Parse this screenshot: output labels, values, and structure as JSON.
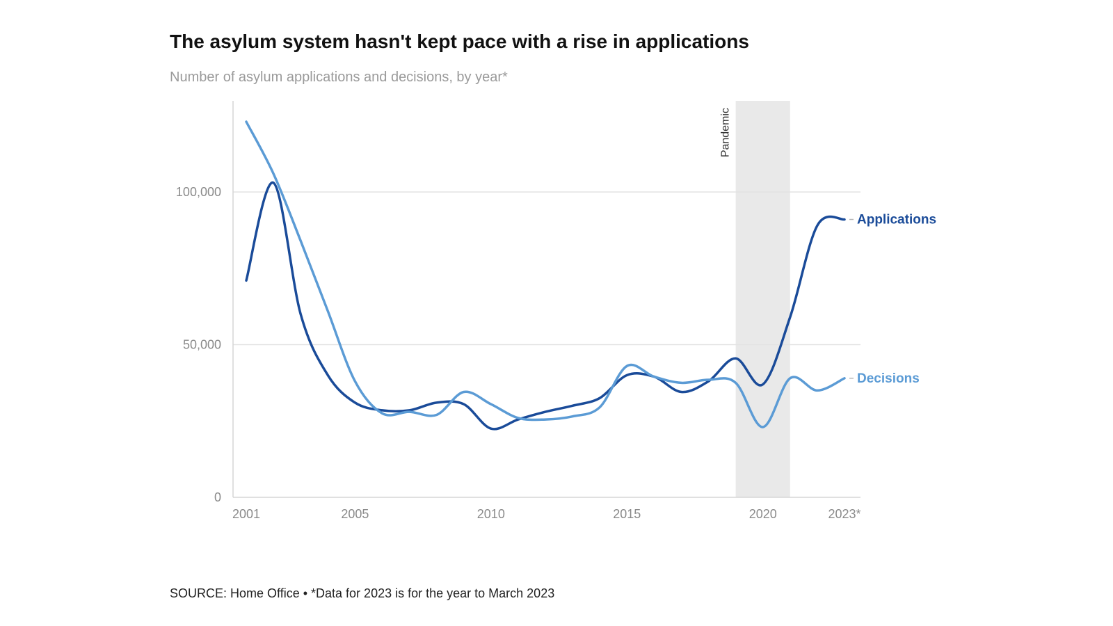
{
  "header": {
    "title": "The asylum system hasn't kept pace with a rise in applications",
    "subtitle": "Number of asylum applications and decisions, by year*"
  },
  "footer": {
    "source": "SOURCE: Home Office • *Data for 2023 is for the year to March 2023"
  },
  "chart_data": {
    "type": "line",
    "title": "The asylum system hasn't kept pace with a rise in applications",
    "subtitle": "Number of asylum applications and decisions, by year*",
    "xlabel": "",
    "ylabel": "",
    "x": [
      2001,
      2002,
      2003,
      2004,
      2005,
      2006,
      2007,
      2008,
      2009,
      2010,
      2011,
      2012,
      2013,
      2014,
      2015,
      2016,
      2017,
      2018,
      2019,
      2020,
      2021,
      2022,
      2023
    ],
    "x_tick_values": [
      2001,
      2005,
      2010,
      2015,
      2020,
      2023
    ],
    "x_tick_labels": [
      "2001",
      "2005",
      "2010",
      "2015",
      "2020",
      "2023*"
    ],
    "xlim": [
      2001,
      2023
    ],
    "ylim": [
      0,
      130000
    ],
    "y_ticks": [
      0,
      50000,
      100000
    ],
    "y_tick_labels": [
      "0",
      "50,000",
      "100,000"
    ],
    "grid": true,
    "legend": "direct-labels-right",
    "series": [
      {
        "name": "Applications",
        "color": "#1a4b99",
        "values": [
          71000,
          103000,
          60000,
          40000,
          31000,
          28500,
          28500,
          31000,
          30500,
          22500,
          25500,
          28000,
          30000,
          32500,
          40000,
          39500,
          34500,
          38000,
          45500,
          37000,
          59000,
          89000,
          91000
        ]
      },
      {
        "name": "Decisions",
        "color": "#5b9bd5",
        "values": [
          123000,
          106000,
          84000,
          61000,
          38000,
          27500,
          28000,
          27000,
          34500,
          30500,
          26000,
          25500,
          26500,
          29500,
          43000,
          39500,
          37500,
          38500,
          37500,
          23000,
          39000,
          35000,
          39000
        ]
      }
    ],
    "annotations": [
      {
        "label": "Pandemic",
        "type": "shaded-band",
        "x_start": 2019,
        "x_end": 2021,
        "color": "#e9e9e9"
      }
    ]
  }
}
